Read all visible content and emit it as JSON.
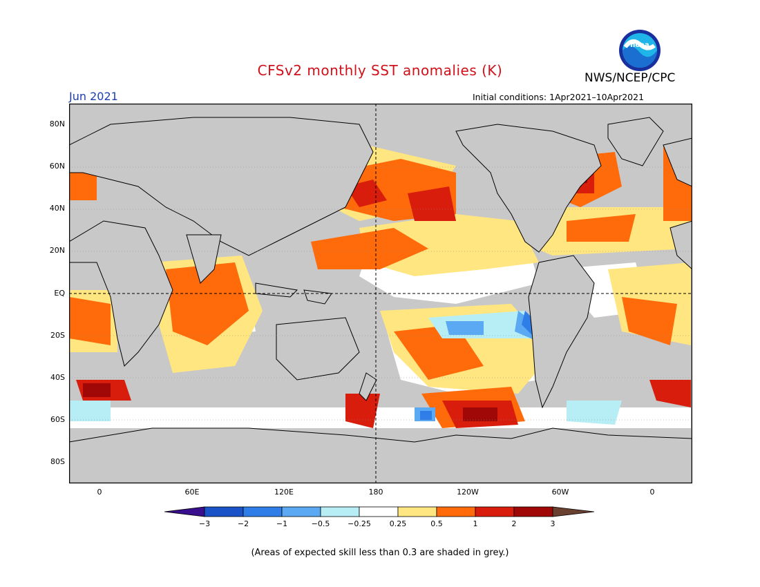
{
  "title": "CFSv2 monthly SST anomalies (K)",
  "agency": "NWS/NCEP/CPC",
  "logo_text": "noaa",
  "month": "Jun 2021",
  "initial_conditions": "Initial conditions: 1Apr2021–10Apr2021",
  "note": "(Areas of expected skill less than 0.3 are shaded in grey.)",
  "lat_labels": [
    "80N",
    "60N",
    "40N",
    "20N",
    "EQ",
    "20S",
    "40S",
    "60S",
    "80S"
  ],
  "lon_labels": [
    "0",
    "60E",
    "120E",
    "180",
    "120W",
    "60W",
    "0"
  ],
  "colorbar": {
    "ticks": [
      "−3",
      "−2",
      "−1",
      "−0.5",
      "−0.25",
      "0.25",
      "0.5",
      "1",
      "2",
      "3"
    ],
    "colors": [
      "#3a0f8e",
      "#1a52c8",
      "#2f7ee8",
      "#5aa9f2",
      "#b7eef6",
      "#ffffff",
      "#ffe680",
      "#ff6a0a",
      "#d91d0d",
      "#a00808",
      "#6a4030"
    ]
  },
  "colors": {
    "land": "#c8c8c8",
    "ocean": "#ffffff",
    "title": "#d0101a",
    "month": "#1c3fb0"
  }
}
